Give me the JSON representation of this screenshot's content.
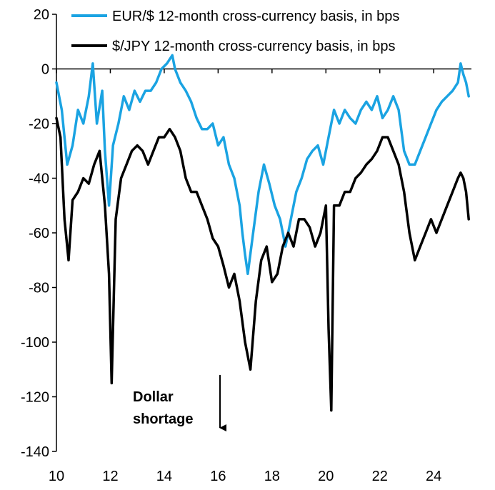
{
  "chart_data": {
    "type": "line",
    "title": "",
    "xlabel": "",
    "ylabel": "",
    "xlim": [
      10,
      25.4
    ],
    "ylim": [
      -140,
      20
    ],
    "grid": false,
    "legend_position": "top-right",
    "x_ticks": [
      10,
      12,
      14,
      16,
      18,
      20,
      22,
      24
    ],
    "x_tick_labels": [
      "10",
      "12",
      "14",
      "16",
      "18",
      "20",
      "22",
      "24"
    ],
    "y_ticks": [
      20,
      0,
      -20,
      -40,
      -60,
      -80,
      -100,
      -120,
      -140
    ],
    "y_tick_labels": [
      "20",
      "0",
      "-20",
      "-40",
      "-60",
      "-80",
      "-100",
      "-120",
      "-140"
    ],
    "series": [
      {
        "name": "EUR/$ 12-month cross-currency basis, in bps",
        "color": "#1AA3E2",
        "x": [
          10.0,
          10.2,
          10.4,
          10.6,
          10.8,
          11.0,
          11.2,
          11.35,
          11.5,
          11.7,
          11.8,
          11.95,
          12.1,
          12.3,
          12.5,
          12.7,
          12.9,
          13.1,
          13.3,
          13.5,
          13.7,
          13.9,
          14.1,
          14.3,
          14.4,
          14.6,
          14.8,
          15.0,
          15.2,
          15.4,
          15.6,
          15.8,
          16.0,
          16.2,
          16.4,
          16.6,
          16.8,
          16.9,
          17.0,
          17.1,
          17.3,
          17.5,
          17.7,
          17.9,
          18.1,
          18.3,
          18.5,
          18.7,
          18.9,
          19.1,
          19.3,
          19.5,
          19.7,
          19.9,
          20.1,
          20.3,
          20.5,
          20.7,
          20.9,
          21.1,
          21.3,
          21.5,
          21.7,
          21.9,
          22.1,
          22.3,
          22.5,
          22.7,
          22.9,
          23.1,
          23.3,
          23.5,
          23.7,
          23.9,
          24.1,
          24.3,
          24.5,
          24.7,
          24.9,
          25.0,
          25.1,
          25.2,
          25.3
        ],
        "values": [
          -5,
          -15,
          -35,
          -28,
          -15,
          -20,
          -10,
          2,
          -20,
          -8,
          -30,
          -50,
          -28,
          -20,
          -10,
          -15,
          -8,
          -12,
          -8,
          -8,
          -5,
          0,
          2,
          5,
          0,
          -5,
          -8,
          -12,
          -18,
          -22,
          -22,
          -20,
          -28,
          -25,
          -35,
          -40,
          -50,
          -60,
          -68,
          -75,
          -60,
          -45,
          -35,
          -42,
          -50,
          -55,
          -65,
          -55,
          -45,
          -40,
          -33,
          -30,
          -28,
          -35,
          -25,
          -15,
          -20,
          -15,
          -18,
          -20,
          -15,
          -12,
          -15,
          -10,
          -18,
          -15,
          -10,
          -15,
          -30,
          -35,
          -35,
          -30,
          -25,
          -20,
          -15,
          -12,
          -10,
          -8,
          -5,
          2,
          -2,
          -5,
          -10
        ]
      },
      {
        "name": "$/JPY 12-month cross-currency basis, in bps",
        "color": "#000000",
        "x": [
          10.0,
          10.15,
          10.3,
          10.45,
          10.6,
          10.8,
          11.0,
          11.2,
          11.4,
          11.6,
          11.8,
          11.95,
          12.05,
          12.2,
          12.4,
          12.6,
          12.8,
          13.0,
          13.2,
          13.4,
          13.6,
          13.8,
          14.0,
          14.2,
          14.4,
          14.6,
          14.8,
          15.0,
          15.2,
          15.4,
          15.6,
          15.8,
          16.0,
          16.2,
          16.4,
          16.6,
          16.8,
          17.0,
          17.2,
          17.4,
          17.6,
          17.8,
          18.0,
          18.2,
          18.4,
          18.6,
          18.8,
          19.0,
          19.2,
          19.4,
          19.6,
          19.8,
          20.0,
          20.1,
          20.2,
          20.3,
          20.5,
          20.7,
          20.9,
          21.1,
          21.3,
          21.5,
          21.7,
          21.9,
          22.1,
          22.3,
          22.5,
          22.7,
          22.9,
          23.1,
          23.3,
          23.5,
          23.7,
          23.9,
          24.1,
          24.3,
          24.5,
          24.7,
          24.9,
          25.0,
          25.1,
          25.2,
          25.3
        ],
        "values": [
          -18,
          -25,
          -55,
          -70,
          -48,
          -45,
          -40,
          -42,
          -35,
          -30,
          -50,
          -75,
          -115,
          -55,
          -40,
          -35,
          -30,
          -28,
          -30,
          -35,
          -30,
          -25,
          -25,
          -22,
          -25,
          -30,
          -40,
          -45,
          -45,
          -50,
          -55,
          -62,
          -65,
          -72,
          -80,
          -75,
          -85,
          -100,
          -110,
          -85,
          -70,
          -65,
          -78,
          -75,
          -65,
          -60,
          -65,
          -55,
          -55,
          -58,
          -65,
          -60,
          -50,
          -95,
          -125,
          -50,
          -50,
          -45,
          -45,
          -40,
          -38,
          -35,
          -33,
          -30,
          -25,
          -25,
          -30,
          -35,
          -45,
          -60,
          -70,
          -65,
          -60,
          -55,
          -60,
          -55,
          -50,
          -45,
          -40,
          -38,
          -40,
          -45,
          -55
        ]
      }
    ],
    "annotations": [
      {
        "text": "Dollar shortage",
        "lines": [
          "Dollar",
          "shortage"
        ],
        "arrow": "down",
        "x": 16.2,
        "y_from": -112,
        "y_to": -134
      }
    ]
  }
}
